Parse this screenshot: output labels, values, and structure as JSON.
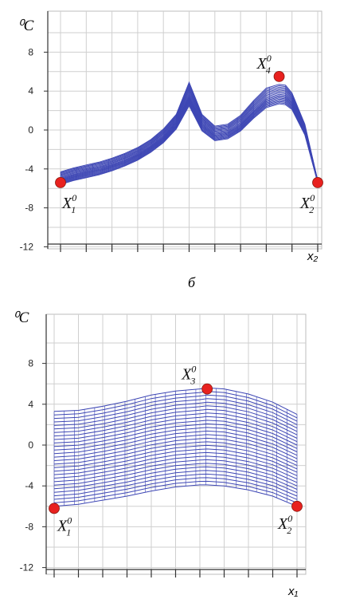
{
  "chart_data": [
    {
      "type": "line",
      "unit_label": "⁰C",
      "xlabel": "x₂",
      "ylim": [
        -12,
        11
      ],
      "yticks": [
        -12,
        -8,
        -4,
        0,
        4,
        8
      ],
      "grid": true,
      "x": [
        0,
        0.05,
        0.1,
        0.15,
        0.2,
        0.25,
        0.3,
        0.35,
        0.4,
        0.45,
        0.5,
        0.55,
        0.6,
        0.65,
        0.7,
        0.75,
        0.8,
        0.85,
        0.875,
        0.9,
        0.95,
        1.0
      ],
      "series": [
        {
          "values": [
            -4.3,
            -3.9,
            -3.6,
            -3.3,
            -2.9,
            -2.4,
            -1.8,
            -1.0,
            0.1,
            1.6,
            4.9,
            1.6,
            0.4,
            0.6,
            1.5,
            3.0,
            4.3,
            4.7,
            4.6,
            3.8,
            0.6,
            -5.2
          ]
        },
        {
          "values": [
            -5.0,
            -4.6,
            -4.3,
            -4.0,
            -3.6,
            -3.1,
            -2.5,
            -1.7,
            -0.7,
            0.8,
            3.5,
            0.7,
            -0.4,
            -0.2,
            0.6,
            2.0,
            3.2,
            3.6,
            3.5,
            2.9,
            0.0,
            -5.3
          ]
        },
        {
          "values": [
            -5.6,
            -5.2,
            -4.9,
            -4.6,
            -4.2,
            -3.7,
            -3.1,
            -2.3,
            -1.3,
            0.1,
            2.5,
            -0.1,
            -1.1,
            -0.9,
            -0.1,
            1.2,
            2.3,
            2.7,
            2.6,
            2.1,
            -0.5,
            -5.4
          ]
        }
      ],
      "band_count": 16,
      "highlight_points": [
        {
          "label": "X",
          "subscript": "1",
          "superscript": "0",
          "x": 0.0,
          "y": -5.4
        },
        {
          "label": "X",
          "subscript": "2",
          "superscript": "0",
          "x": 1.0,
          "y": -5.4
        },
        {
          "label": "X",
          "subscript": "4",
          "superscript": "0",
          "x": 0.85,
          "y": 5.5
        }
      ]
    },
    {
      "type": "line",
      "unit_label": "⁰C",
      "xlabel": "x₁",
      "ylim": [
        -12.5,
        11
      ],
      "yticks": [
        -12,
        -8,
        -4,
        0,
        4,
        8
      ],
      "grid": true,
      "x": [
        0,
        0.1,
        0.2,
        0.3,
        0.4,
        0.5,
        0.6,
        0.63,
        0.7,
        0.8,
        0.9,
        1.0
      ],
      "series": [
        {
          "values": [
            3.3,
            3.4,
            3.8,
            4.3,
            4.9,
            5.3,
            5.5,
            5.6,
            5.5,
            5.0,
            4.2,
            3.0
          ]
        },
        {
          "values": [
            -6.0,
            -5.8,
            -5.4,
            -5.0,
            -4.5,
            -4.1,
            -3.9,
            -3.9,
            -4.0,
            -4.4,
            -5.0,
            -6.0
          ]
        }
      ],
      "band_count": 28,
      "highlight_points": [
        {
          "label": "X",
          "subscript": "1",
          "superscript": "0",
          "x": 0.0,
          "y": -6.2
        },
        {
          "label": "X",
          "subscript": "2",
          "superscript": "0",
          "x": 1.0,
          "y": -6.0
        },
        {
          "label": "X",
          "subscript": "3",
          "superscript": "0",
          "x": 0.63,
          "y": 5.5
        }
      ]
    }
  ],
  "caption": "б",
  "colors": {
    "curves": "#3d46b4",
    "points": "#e8211f",
    "grid": "#cfcfcf",
    "axis": "#333333"
  }
}
